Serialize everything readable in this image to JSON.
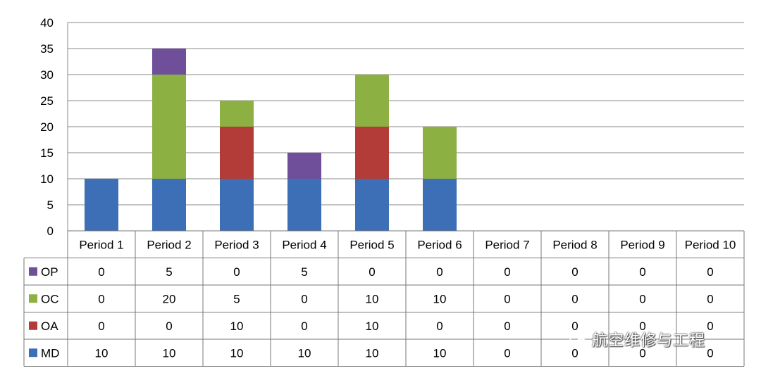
{
  "chart_data": {
    "type": "bar",
    "stacked": true,
    "categories": [
      "Period 1",
      "Period 2",
      "Period 3",
      "Period 4",
      "Period 5",
      "Period 6",
      "Period 7",
      "Period 8",
      "Period 9",
      "Period 10"
    ],
    "series": [
      {
        "name": "MD",
        "values": [
          10,
          10,
          10,
          10,
          10,
          10,
          0,
          0,
          0,
          0
        ],
        "color": "#3d6fb6"
      },
      {
        "name": "OA",
        "values": [
          0,
          0,
          10,
          0,
          10,
          0,
          0,
          0,
          0,
          0
        ],
        "color": "#b33b38"
      },
      {
        "name": "OC",
        "values": [
          0,
          20,
          5,
          0,
          10,
          10,
          0,
          0,
          0,
          0
        ],
        "color": "#8db043"
      },
      {
        "name": "OP",
        "values": [
          0,
          5,
          0,
          5,
          0,
          0,
          0,
          0,
          0,
          0
        ],
        "color": "#6f4f99"
      }
    ],
    "table_row_order": [
      "OP",
      "OC",
      "OA",
      "MD"
    ],
    "ylim": [
      0,
      40
    ],
    "yticks": [
      0,
      5,
      10,
      15,
      20,
      25,
      30,
      35,
      40
    ],
    "grid": true,
    "legend": "data-table-left"
  },
  "watermark": "航空维修与工程"
}
